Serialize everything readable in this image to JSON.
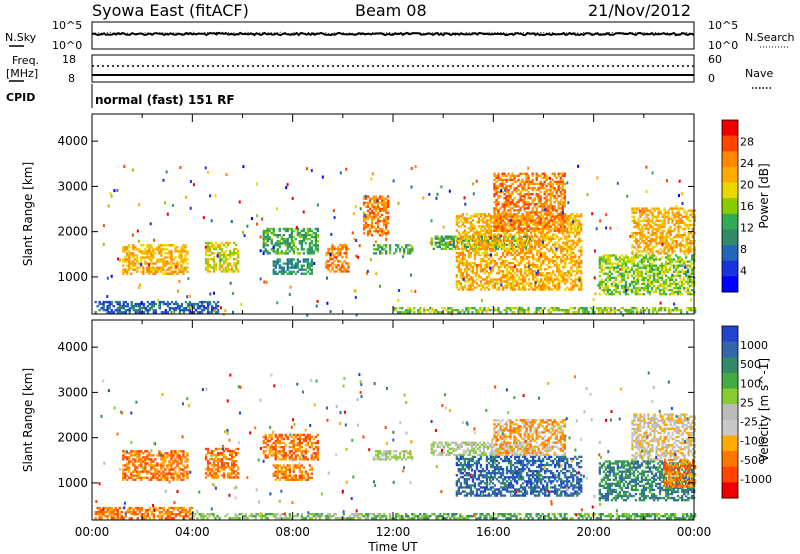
{
  "header": {
    "station": "Syowa East (fitACF)",
    "beam": "Beam 08",
    "date": "21/Nov/2012"
  },
  "top_panels": {
    "nsky_label": "N.Sky",
    "nsky_ticks": [
      "10^5",
      "10^0"
    ],
    "nsearch_label": "N.Search",
    "nsearch_ticks": [
      "10^5",
      "10^0"
    ],
    "freq_label_1": "Freq.",
    "freq_label_2": "[MHz]",
    "freq_ticks": [
      "18",
      "8"
    ],
    "nave_label": "Nave",
    "nave_ticks": [
      "60",
      "0"
    ],
    "cpid_label": "CPID",
    "cpid_text": "normal (fast) 151 RF"
  },
  "chart_data": [
    {
      "type": "heatmap",
      "name": "power-panel",
      "ylabel": "Slant Range [km]",
      "xlabel": "Time UT",
      "x_ticks": [
        "00:00",
        "04:00",
        "08:00",
        "12:00",
        "16:00",
        "20:00",
        "00:00"
      ],
      "x_range_hours": [
        0,
        24
      ],
      "y_ticks": [
        1000,
        2000,
        3000,
        4000
      ],
      "ylim": [
        180,
        4600
      ],
      "colorbar": {
        "label": "Power [dB]",
        "ticks": [
          "28",
          "24",
          "20",
          "16",
          "12",
          "8",
          "4"
        ],
        "colors": [
          "#ee0000",
          "#ff4400",
          "#ff8800",
          "#ffaa00",
          "#e8d800",
          "#88cc00",
          "#33aa55",
          "#338866",
          "#2266bb",
          "#1a33dd",
          "#0000ff"
        ]
      },
      "echo_regions": [
        {
          "t0": 0.1,
          "t1": 5.0,
          "r0": 200,
          "r1": 450,
          "level": 8
        },
        {
          "t0": 1.2,
          "t1": 3.8,
          "r0": 1050,
          "r1": 1700,
          "level": 3
        },
        {
          "t0": 4.5,
          "t1": 5.8,
          "r0": 1100,
          "r1": 1750,
          "level": 4
        },
        {
          "t0": 6.8,
          "t1": 9.0,
          "r0": 1500,
          "r1": 2050,
          "level": 6
        },
        {
          "t0": 7.2,
          "t1": 8.8,
          "r0": 1050,
          "r1": 1400,
          "level": 7
        },
        {
          "t0": 9.3,
          "t1": 10.2,
          "r0": 1100,
          "r1": 1700,
          "level": 2
        },
        {
          "t0": 10.8,
          "t1": 11.8,
          "r0": 1900,
          "r1": 2800,
          "level": 2
        },
        {
          "t0": 11.2,
          "t1": 12.8,
          "r0": 1500,
          "r1": 1700,
          "level": 6
        },
        {
          "t0": 13.5,
          "t1": 17.5,
          "r0": 1600,
          "r1": 1900,
          "level": 6
        },
        {
          "t0": 14.5,
          "t1": 19.5,
          "r0": 700,
          "r1": 2400,
          "level": 3
        },
        {
          "t0": 16.0,
          "t1": 18.8,
          "r0": 2000,
          "r1": 3300,
          "level": 2
        },
        {
          "t0": 20.2,
          "t1": 24.0,
          "r0": 600,
          "r1": 1500,
          "level": 5
        },
        {
          "t0": 21.5,
          "t1": 24.0,
          "r0": 1500,
          "r1": 2500,
          "level": 3
        },
        {
          "t0": 12.0,
          "t1": 24.0,
          "r0": 200,
          "r1": 320,
          "level": 5
        }
      ]
    },
    {
      "type": "heatmap",
      "name": "velocity-panel",
      "ylabel": "Slant Range [km]",
      "xlabel": "Time UT",
      "x_ticks": [
        "00:00",
        "04:00",
        "08:00",
        "12:00",
        "16:00",
        "20:00",
        "00:00"
      ],
      "x_range_hours": [
        0,
        24
      ],
      "y_ticks": [
        1000,
        2000,
        3000,
        4000
      ],
      "ylim": [
        180,
        4600
      ],
      "colorbar": {
        "label": "Velocity [m s^-1]",
        "ticks": [
          "1000",
          "500",
          "100",
          "25",
          "-25",
          "-100",
          "-500",
          "-1000"
        ],
        "colors": [
          "#2244cc",
          "#3366aa",
          "#338866",
          "#44aa44",
          "#88cc33",
          "#bbbbbb",
          "#c8c8c8",
          "#ffaa00",
          "#ff7700",
          "#ff4400",
          "#ee0000"
        ]
      },
      "echo_regions": [
        {
          "t0": 0.1,
          "t1": 4.0,
          "r0": 200,
          "r1": 450,
          "level": 8
        },
        {
          "t0": 4.0,
          "t1": 12.0,
          "r0": 200,
          "r1": 300,
          "level": 4
        },
        {
          "t0": 1.2,
          "t1": 3.8,
          "r0": 1050,
          "r1": 1700,
          "level": 8
        },
        {
          "t0": 4.5,
          "t1": 5.8,
          "r0": 1100,
          "r1": 1750,
          "level": 8
        },
        {
          "t0": 6.8,
          "t1": 9.0,
          "r0": 1500,
          "r1": 2050,
          "level": 8
        },
        {
          "t0": 7.2,
          "t1": 8.8,
          "r0": 1050,
          "r1": 1400,
          "level": 8
        },
        {
          "t0": 11.2,
          "t1": 12.8,
          "r0": 1500,
          "r1": 1700,
          "level": 5
        },
        {
          "t0": 13.5,
          "t1": 17.5,
          "r0": 1600,
          "r1": 1900,
          "level": 5
        },
        {
          "t0": 14.5,
          "t1": 19.5,
          "r0": 700,
          "r1": 1600,
          "level": 1
        },
        {
          "t0": 16.0,
          "t1": 18.8,
          "r0": 1600,
          "r1": 2400,
          "level": 7
        },
        {
          "t0": 20.2,
          "t1": 24.0,
          "r0": 600,
          "r1": 1500,
          "level": 2
        },
        {
          "t0": 21.5,
          "t1": 24.0,
          "r0": 1500,
          "r1": 2500,
          "level": 6
        },
        {
          "t0": 22.8,
          "t1": 24.0,
          "r0": 900,
          "r1": 1500,
          "level": 8
        },
        {
          "t0": 12.0,
          "t1": 24.0,
          "r0": 200,
          "r1": 320,
          "level": 3
        }
      ]
    }
  ]
}
